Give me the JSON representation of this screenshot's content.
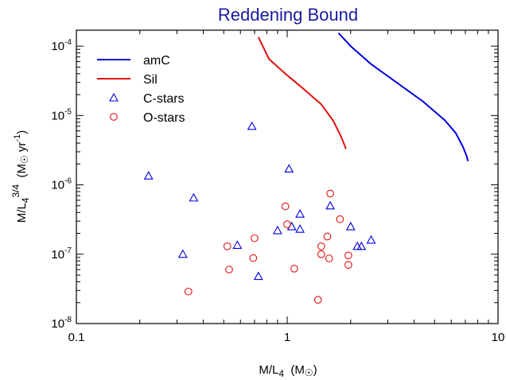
{
  "chart_data": {
    "type": "scatter",
    "title": "Reddening Bound",
    "xlabel": {
      "main": "M/L",
      "sub": "4",
      "unit_open": "(M",
      "sun": "☉",
      "unit_close": ")"
    },
    "ylabel": {
      "main": "M/L",
      "sub": "4",
      "sup": "3/4",
      "unit_open": "(M",
      "sun": "☉",
      "unit_mid": " yr",
      "unit_sup": "-1",
      "unit_close": ")"
    },
    "x_scale": "log",
    "y_scale": "log",
    "xlim": [
      0.1,
      10
    ],
    "ylim": [
      1e-08,
      0.00017
    ],
    "x_ticks": [
      {
        "value": 0.1,
        "label": "0.1"
      },
      {
        "value": 1,
        "label": "1"
      },
      {
        "value": 10,
        "label": "10"
      }
    ],
    "y_ticks": [
      {
        "value": 1e-08,
        "base": "10",
        "exp": "-8"
      },
      {
        "value": 1e-07,
        "base": "10",
        "exp": "-7"
      },
      {
        "value": 1e-06,
        "base": "10",
        "exp": "-6"
      },
      {
        "value": 1e-05,
        "base": "10",
        "exp": "-5"
      },
      {
        "value": 0.0001,
        "base": "10",
        "exp": "-4"
      }
    ],
    "grid": false,
    "legend_position": "top-left",
    "series": [
      {
        "name": "amC",
        "kind": "line",
        "color": "#0000dd",
        "points": [
          [
            1.75,
            0.000155
          ],
          [
            2.0,
            0.0001
          ],
          [
            2.5,
            5.5e-05
          ],
          [
            3.3,
            3e-05
          ],
          [
            4.4,
            1.6e-05
          ],
          [
            5.6,
            8.5e-06
          ],
          [
            6.3,
            5.6e-06
          ],
          [
            6.8,
            3.6e-06
          ],
          [
            7.1,
            2.6e-06
          ],
          [
            7.2,
            2.2e-06
          ]
        ]
      },
      {
        "name": "Sil",
        "kind": "line",
        "color": "#e01010",
        "points": [
          [
            0.73,
            0.000135
          ],
          [
            0.82,
            6.5e-05
          ],
          [
            0.98,
            4e-05
          ],
          [
            1.2,
            2.4e-05
          ],
          [
            1.45,
            1.45e-05
          ],
          [
            1.65,
            8.5e-06
          ],
          [
            1.8,
            5e-06
          ],
          [
            1.9,
            3.3e-06
          ]
        ]
      },
      {
        "name": "C-stars",
        "kind": "scatter",
        "marker": "triangle",
        "color": "#0000dd",
        "points": [
          [
            0.22,
            1.35e-06
          ],
          [
            0.36,
            6.5e-07
          ],
          [
            0.68,
            7e-06
          ],
          [
            1.02,
            1.7e-06
          ],
          [
            1.15,
            3.8e-07
          ],
          [
            1.05,
            2.5e-07
          ],
          [
            1.15,
            2.3e-07
          ],
          [
            0.9,
            2.2e-07
          ],
          [
            1.6,
            5e-07
          ],
          [
            2.0,
            2.5e-07
          ],
          [
            2.5,
            1.6e-07
          ],
          [
            2.15,
            1.3e-07
          ],
          [
            2.25,
            1.3e-07
          ],
          [
            0.58,
            1.35e-07
          ],
          [
            0.32,
            1e-07
          ],
          [
            0.73,
            4.8e-08
          ]
        ]
      },
      {
        "name": "O-stars",
        "kind": "scatter",
        "marker": "circle",
        "color": "#e01010",
        "points": [
          [
            0.98,
            4.9e-07
          ],
          [
            1.0,
            2.7e-07
          ],
          [
            1.6,
            7.5e-07
          ],
          [
            1.78,
            3.2e-07
          ],
          [
            1.55,
            1.8e-07
          ],
          [
            1.45,
            1.3e-07
          ],
          [
            1.45,
            1e-07
          ],
          [
            1.58,
            8.7e-08
          ],
          [
            1.95,
            9.6e-08
          ],
          [
            1.95,
            7e-08
          ],
          [
            0.7,
            1.7e-07
          ],
          [
            0.52,
            1.3e-07
          ],
          [
            0.69,
            8.8e-08
          ],
          [
            0.53,
            6e-08
          ],
          [
            1.08,
            6.2e-08
          ],
          [
            0.34,
            2.9e-08
          ],
          [
            1.4,
            2.2e-08
          ]
        ]
      }
    ]
  }
}
